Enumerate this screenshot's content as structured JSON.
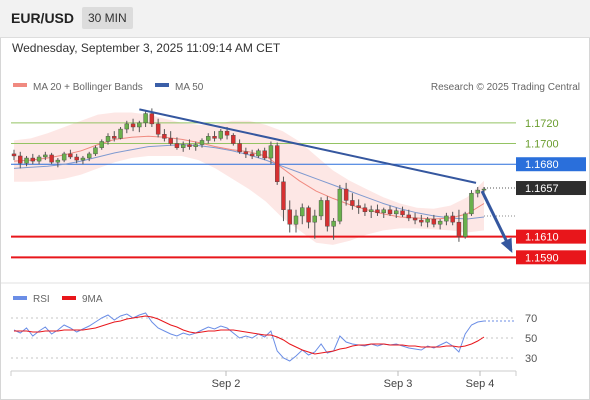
{
  "header": {
    "symbol": "EUR/USD",
    "timeframe": "30 MIN"
  },
  "timestamp": "Wednesday, September 3, 2025 11:09:14 AM CET",
  "legend": {
    "ma20_label": "MA 20 + Bollinger Bands",
    "ma50_label": "MA 50",
    "research": "Research © 2025 Trading Central",
    "rsi_label": "RSI",
    "rsi9_label": "9MA"
  },
  "colors": {
    "ma20": "#f08a80",
    "ma50": "#3b5fa8",
    "bollinger_fill": "#fde3e1",
    "resistance_green": "#94c363",
    "current_blue": "#2a6fdb",
    "support_red": "#e8161b",
    "trend_line": "#35579f",
    "rsi": "#6b8ee6",
    "rsi_ma": "#e8161b"
  },
  "chart_data": [
    {
      "type": "candlestick",
      "title": "EUR/USD 30 MIN",
      "ylim": [
        1.157,
        1.1745
      ],
      "x_ticks": [
        "Sep 2",
        "Sep 3",
        "Sep 4"
      ],
      "levels": [
        {
          "value": 1.172,
          "label": "1.1720",
          "style": "resistance"
        },
        {
          "value": 1.17,
          "label": "1.1700",
          "style": "resistance"
        },
        {
          "value": 1.168,
          "label": "1.1680",
          "style": "current"
        },
        {
          "value": 1.1657,
          "label": "1.1657",
          "style": "last"
        },
        {
          "value": 1.161,
          "label": "1.1610",
          "style": "support"
        },
        {
          "value": 1.159,
          "label": "1.1590",
          "style": "support"
        }
      ],
      "trend_line": [
        1.1733,
        1.1662
      ],
      "projection_arrow": [
        1.1656,
        1.1592
      ],
      "candles": [
        {
          "o": 1.169,
          "h": 1.1694,
          "l": 1.1684,
          "c": 1.1688
        },
        {
          "o": 1.1688,
          "h": 1.1692,
          "l": 1.1676,
          "c": 1.1681
        },
        {
          "o": 1.1681,
          "h": 1.1688,
          "l": 1.1678,
          "c": 1.1686
        },
        {
          "o": 1.1686,
          "h": 1.169,
          "l": 1.168,
          "c": 1.1683
        },
        {
          "o": 1.1683,
          "h": 1.1689,
          "l": 1.168,
          "c": 1.1687
        },
        {
          "o": 1.1687,
          "h": 1.1692,
          "l": 1.1684,
          "c": 1.1689
        },
        {
          "o": 1.1689,
          "h": 1.1691,
          "l": 1.168,
          "c": 1.1682
        },
        {
          "o": 1.1682,
          "h": 1.1686,
          "l": 1.1677,
          "c": 1.1684
        },
        {
          "o": 1.1684,
          "h": 1.1692,
          "l": 1.1682,
          "c": 1.169
        },
        {
          "o": 1.169,
          "h": 1.1694,
          "l": 1.1685,
          "c": 1.1687
        },
        {
          "o": 1.1687,
          "h": 1.169,
          "l": 1.1681,
          "c": 1.1684
        },
        {
          "o": 1.1684,
          "h": 1.1688,
          "l": 1.168,
          "c": 1.1686
        },
        {
          "o": 1.1686,
          "h": 1.1692,
          "l": 1.1683,
          "c": 1.169
        },
        {
          "o": 1.169,
          "h": 1.1698,
          "l": 1.1688,
          "c": 1.1696
        },
        {
          "o": 1.1696,
          "h": 1.1704,
          "l": 1.1694,
          "c": 1.1702
        },
        {
          "o": 1.1702,
          "h": 1.171,
          "l": 1.1699,
          "c": 1.1707
        },
        {
          "o": 1.1707,
          "h": 1.1712,
          "l": 1.1702,
          "c": 1.1705
        },
        {
          "o": 1.1705,
          "h": 1.1716,
          "l": 1.1704,
          "c": 1.1714
        },
        {
          "o": 1.1714,
          "h": 1.1722,
          "l": 1.171,
          "c": 1.1719
        },
        {
          "o": 1.1719,
          "h": 1.1724,
          "l": 1.1712,
          "c": 1.1716
        },
        {
          "o": 1.1716,
          "h": 1.1722,
          "l": 1.1711,
          "c": 1.172
        },
        {
          "o": 1.172,
          "h": 1.1732,
          "l": 1.1716,
          "c": 1.1729
        },
        {
          "o": 1.1729,
          "h": 1.1734,
          "l": 1.1716,
          "c": 1.1719
        },
        {
          "o": 1.1719,
          "h": 1.1724,
          "l": 1.1706,
          "c": 1.1709
        },
        {
          "o": 1.1709,
          "h": 1.1714,
          "l": 1.1702,
          "c": 1.1705
        },
        {
          "o": 1.1705,
          "h": 1.1712,
          "l": 1.1698,
          "c": 1.17
        },
        {
          "o": 1.17,
          "h": 1.1706,
          "l": 1.1694,
          "c": 1.1696
        },
        {
          "o": 1.1696,
          "h": 1.1702,
          "l": 1.1692,
          "c": 1.1699
        },
        {
          "o": 1.1699,
          "h": 1.1704,
          "l": 1.1694,
          "c": 1.1697
        },
        {
          "o": 1.1697,
          "h": 1.1702,
          "l": 1.1693,
          "c": 1.1699
        },
        {
          "o": 1.1699,
          "h": 1.1705,
          "l": 1.1696,
          "c": 1.1703
        },
        {
          "o": 1.1703,
          "h": 1.171,
          "l": 1.17,
          "c": 1.1707
        },
        {
          "o": 1.1707,
          "h": 1.1712,
          "l": 1.1702,
          "c": 1.1705
        },
        {
          "o": 1.1705,
          "h": 1.1714,
          "l": 1.1703,
          "c": 1.1712
        },
        {
          "o": 1.1712,
          "h": 1.1716,
          "l": 1.1704,
          "c": 1.1708
        },
        {
          "o": 1.1708,
          "h": 1.171,
          "l": 1.1698,
          "c": 1.17
        },
        {
          "o": 1.17,
          "h": 1.1704,
          "l": 1.169,
          "c": 1.1692
        },
        {
          "o": 1.1692,
          "h": 1.1696,
          "l": 1.1686,
          "c": 1.169
        },
        {
          "o": 1.169,
          "h": 1.1694,
          "l": 1.1685,
          "c": 1.1688
        },
        {
          "o": 1.1688,
          "h": 1.1695,
          "l": 1.1686,
          "c": 1.1693
        },
        {
          "o": 1.1693,
          "h": 1.1696,
          "l": 1.1684,
          "c": 1.1686
        },
        {
          "o": 1.1686,
          "h": 1.1702,
          "l": 1.168,
          "c": 1.1698
        },
        {
          "o": 1.1698,
          "h": 1.1701,
          "l": 1.166,
          "c": 1.1663
        },
        {
          "o": 1.1663,
          "h": 1.1668,
          "l": 1.1625,
          "c": 1.1636
        },
        {
          "o": 1.1636,
          "h": 1.1645,
          "l": 1.1614,
          "c": 1.1622
        },
        {
          "o": 1.1622,
          "h": 1.1636,
          "l": 1.1614,
          "c": 1.163
        },
        {
          "o": 1.163,
          "h": 1.1642,
          "l": 1.1622,
          "c": 1.1638
        },
        {
          "o": 1.1638,
          "h": 1.164,
          "l": 1.1618,
          "c": 1.1624
        },
        {
          "o": 1.1624,
          "h": 1.1636,
          "l": 1.1608,
          "c": 1.163
        },
        {
          "o": 1.163,
          "h": 1.1648,
          "l": 1.1626,
          "c": 1.1645
        },
        {
          "o": 1.1645,
          "h": 1.1649,
          "l": 1.1615,
          "c": 1.162
        },
        {
          "o": 1.162,
          "h": 1.1628,
          "l": 1.1607,
          "c": 1.1625
        },
        {
          "o": 1.1625,
          "h": 1.166,
          "l": 1.1622,
          "c": 1.1656
        },
        {
          "o": 1.1656,
          "h": 1.1662,
          "l": 1.164,
          "c": 1.1645
        },
        {
          "o": 1.1645,
          "h": 1.1652,
          "l": 1.1636,
          "c": 1.164
        },
        {
          "o": 1.164,
          "h": 1.1646,
          "l": 1.1632,
          "c": 1.1638
        },
        {
          "o": 1.1638,
          "h": 1.1642,
          "l": 1.163,
          "c": 1.1634
        },
        {
          "o": 1.1634,
          "h": 1.164,
          "l": 1.1628,
          "c": 1.1636
        },
        {
          "o": 1.1636,
          "h": 1.1641,
          "l": 1.163,
          "c": 1.1633
        },
        {
          "o": 1.1633,
          "h": 1.1638,
          "l": 1.1628,
          "c": 1.1636
        },
        {
          "o": 1.1636,
          "h": 1.164,
          "l": 1.163,
          "c": 1.1632
        },
        {
          "o": 1.1632,
          "h": 1.1638,
          "l": 1.1628,
          "c": 1.1635
        },
        {
          "o": 1.1635,
          "h": 1.1639,
          "l": 1.1629,
          "c": 1.1631
        },
        {
          "o": 1.1631,
          "h": 1.1636,
          "l": 1.1625,
          "c": 1.1628
        },
        {
          "o": 1.1628,
          "h": 1.1633,
          "l": 1.1622,
          "c": 1.1626
        },
        {
          "o": 1.1626,
          "h": 1.1631,
          "l": 1.162,
          "c": 1.1624
        },
        {
          "o": 1.1624,
          "h": 1.1629,
          "l": 1.1619,
          "c": 1.1627
        },
        {
          "o": 1.1627,
          "h": 1.1631,
          "l": 1.1619,
          "c": 1.1622
        },
        {
          "o": 1.1622,
          "h": 1.1627,
          "l": 1.1617,
          "c": 1.1625
        },
        {
          "o": 1.1625,
          "h": 1.1633,
          "l": 1.1621,
          "c": 1.163
        },
        {
          "o": 1.163,
          "h": 1.1634,
          "l": 1.1621,
          "c": 1.1624
        },
        {
          "o": 1.1624,
          "h": 1.1636,
          "l": 1.1605,
          "c": 1.161
        },
        {
          "o": 1.161,
          "h": 1.1634,
          "l": 1.1608,
          "c": 1.1632
        },
        {
          "o": 1.1632,
          "h": 1.1655,
          "l": 1.163,
          "c": 1.1652
        },
        {
          "o": 1.1652,
          "h": 1.1658,
          "l": 1.1648,
          "c": 1.1655
        },
        {
          "o": 1.1655,
          "h": 1.1658,
          "l": 1.1651,
          "c": 1.1656
        }
      ],
      "ma20": [
        1.1683,
        1.1684,
        1.1686,
        1.1689,
        1.1693,
        1.1699,
        1.1704,
        1.1706,
        1.1707,
        1.1706,
        1.1704,
        1.1701,
        1.1697,
        1.1694,
        1.1692,
        1.1688,
        1.1676,
        1.1664,
        1.1654,
        1.1647,
        1.1641,
        1.1636,
        1.1632,
        1.1629,
        1.1628,
        1.1627,
        1.1628,
        1.1632,
        1.1642
      ],
      "ma50": [
        1.1676,
        1.1677,
        1.1678,
        1.168,
        1.1683,
        1.1687,
        1.1691,
        1.1694,
        1.1697,
        1.1698,
        1.1699,
        1.1698,
        1.1696,
        1.1693,
        1.1689,
        1.1684,
        1.1678,
        1.1672,
        1.1666,
        1.166,
        1.1654,
        1.1648,
        1.1642,
        1.1637,
        1.1633,
        1.163,
        1.1628,
        1.1627,
        1.1629
      ],
      "bb_upper": [
        1.1703,
        1.1705,
        1.171,
        1.1716,
        1.1722,
        1.1728,
        1.173,
        1.173,
        1.1728,
        1.1724,
        1.172,
        1.1718,
        1.1718,
        1.1722,
        1.1722,
        1.1718,
        1.1712,
        1.1702,
        1.1688,
        1.1674,
        1.1664,
        1.1656,
        1.1648,
        1.1642,
        1.1638,
        1.1637,
        1.164,
        1.1648,
        1.1664
      ],
      "bb_lower": [
        1.1663,
        1.1663,
        1.1664,
        1.1666,
        1.167,
        1.1676,
        1.1682,
        1.1686,
        1.1688,
        1.1688,
        1.1688,
        1.1684,
        1.1676,
        1.1666,
        1.1656,
        1.1644,
        1.1628,
        1.1616,
        1.1604,
        1.1602,
        1.1606,
        1.1612,
        1.1616,
        1.1618,
        1.1618,
        1.1617,
        1.1616,
        1.1614,
        1.1616
      ]
    },
    {
      "type": "line",
      "ylim": [
        20,
        80
      ],
      "y_ticks": [
        "70",
        "50",
        "30"
      ],
      "series": [
        {
          "name": "RSI",
          "values": [
            58,
            55,
            60,
            52,
            57,
            61,
            54,
            58,
            63,
            60,
            56,
            59,
            62,
            66,
            70,
            73,
            68,
            72,
            74,
            70,
            73,
            75,
            66,
            60,
            57,
            54,
            52,
            55,
            53,
            55,
            58,
            61,
            59,
            62,
            60,
            55,
            50,
            52,
            50,
            54,
            51,
            57,
            37,
            30,
            27,
            32,
            38,
            33,
            36,
            44,
            35,
            37,
            52,
            46,
            44,
            43,
            42,
            44,
            42,
            44,
            43,
            44,
            42,
            40,
            39,
            38,
            42,
            40,
            43,
            46,
            42,
            36,
            54,
            63,
            66,
            67
          ]
        },
        {
          "name": "9MA",
          "values": [
            57,
            57,
            57,
            56,
            56,
            57,
            57,
            57,
            58,
            58,
            58,
            58,
            59,
            60,
            62,
            64,
            66,
            67,
            69,
            70,
            71,
            72,
            71,
            69,
            66,
            63,
            61,
            58,
            56,
            55,
            56,
            57,
            57,
            58,
            58,
            58,
            57,
            56,
            55,
            54,
            53,
            53,
            51,
            48,
            44,
            41,
            38,
            36,
            34,
            35,
            36,
            37,
            39,
            40,
            42,
            43,
            43,
            44,
            44,
            44,
            43,
            43,
            43,
            42,
            42,
            41,
            41,
            41,
            41,
            42,
            42,
            41,
            42,
            44,
            47,
            51
          ]
        }
      ]
    }
  ]
}
